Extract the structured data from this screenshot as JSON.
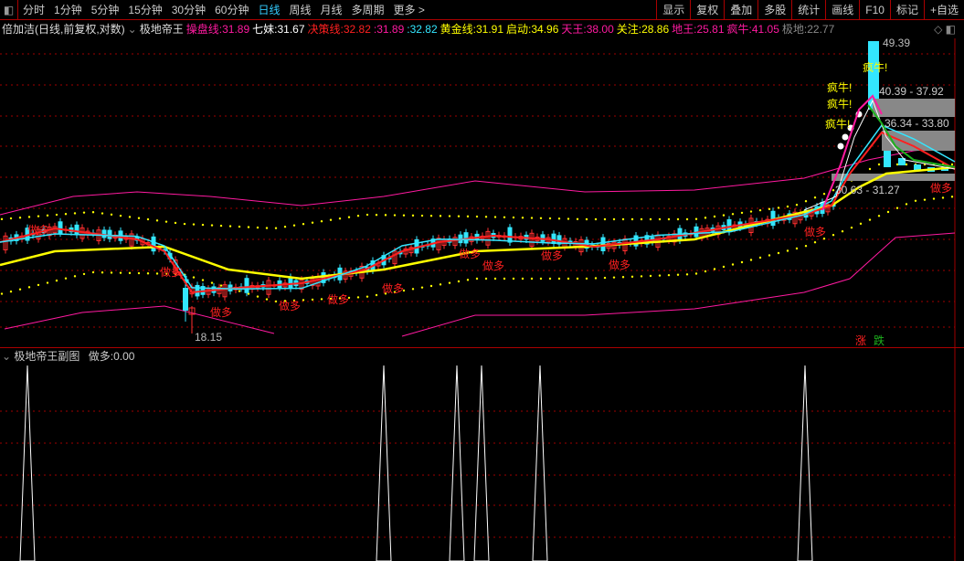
{
  "toolbar": {
    "periods": [
      "分时",
      "1分钟",
      "5分钟",
      "15分钟",
      "30分钟",
      "60分钟",
      "日线",
      "周线",
      "月线",
      "多周期",
      "更多 >"
    ],
    "active": "日线",
    "buttons": [
      "显示",
      "复权",
      "叠加",
      "多股",
      "统计",
      "画线",
      "F10",
      "标记",
      "+自选"
    ]
  },
  "legend": {
    "stock": "倍加洁(日线,前复权,对数)",
    "indicator": "极地帝王",
    "items": [
      {
        "label": "操盘线:",
        "value": "31.89",
        "color": "#ff1aa0"
      },
      {
        "label": "七妹:",
        "value": "31.67",
        "color": "#ffffff"
      },
      {
        "label": "决策线:",
        "value": "32.82",
        "color": "#ff2020"
      },
      {
        "label": ":",
        "value": "31.89",
        "color": "#ff1aa0"
      },
      {
        "label": ":",
        "value": "32.82",
        "color": "#33e6ff"
      },
      {
        "label": "黄金线:",
        "value": "31.91",
        "color": "#ffff00"
      },
      {
        "label": "启动:",
        "value": "34.96",
        "color": "#ffff00"
      },
      {
        "label": "天王:",
        "value": "38.00",
        "color": "#ff1aa0"
      },
      {
        "label": "关注:",
        "value": "28.86",
        "color": "#ffff00"
      },
      {
        "label": "地王:",
        "value": "25.81",
        "color": "#ff1aa0"
      },
      {
        "label": "疯牛:",
        "value": "41.05",
        "color": "#ff1aa0"
      },
      {
        "label": "极地:",
        "value": "22.77",
        "color": "#888888"
      }
    ]
  },
  "annotations": {
    "high": "49.39",
    "low": "18.15",
    "signal": "做多",
    "bull": "疯牛!",
    "zone1": "40.39 - 37.92",
    "zone2": "36.34 - 33.80",
    "zone3": "30.63 - 31.27",
    "up": "涨",
    "down": "跌"
  },
  "sub": {
    "title": "极地帝王副图",
    "label": "做多:",
    "value": "0.00"
  },
  "colors": {
    "grid": "#a00000",
    "up": "#ff3030",
    "down": "#33e6ff",
    "ma": "#ffff00",
    "band": "#ff1aa0"
  }
}
